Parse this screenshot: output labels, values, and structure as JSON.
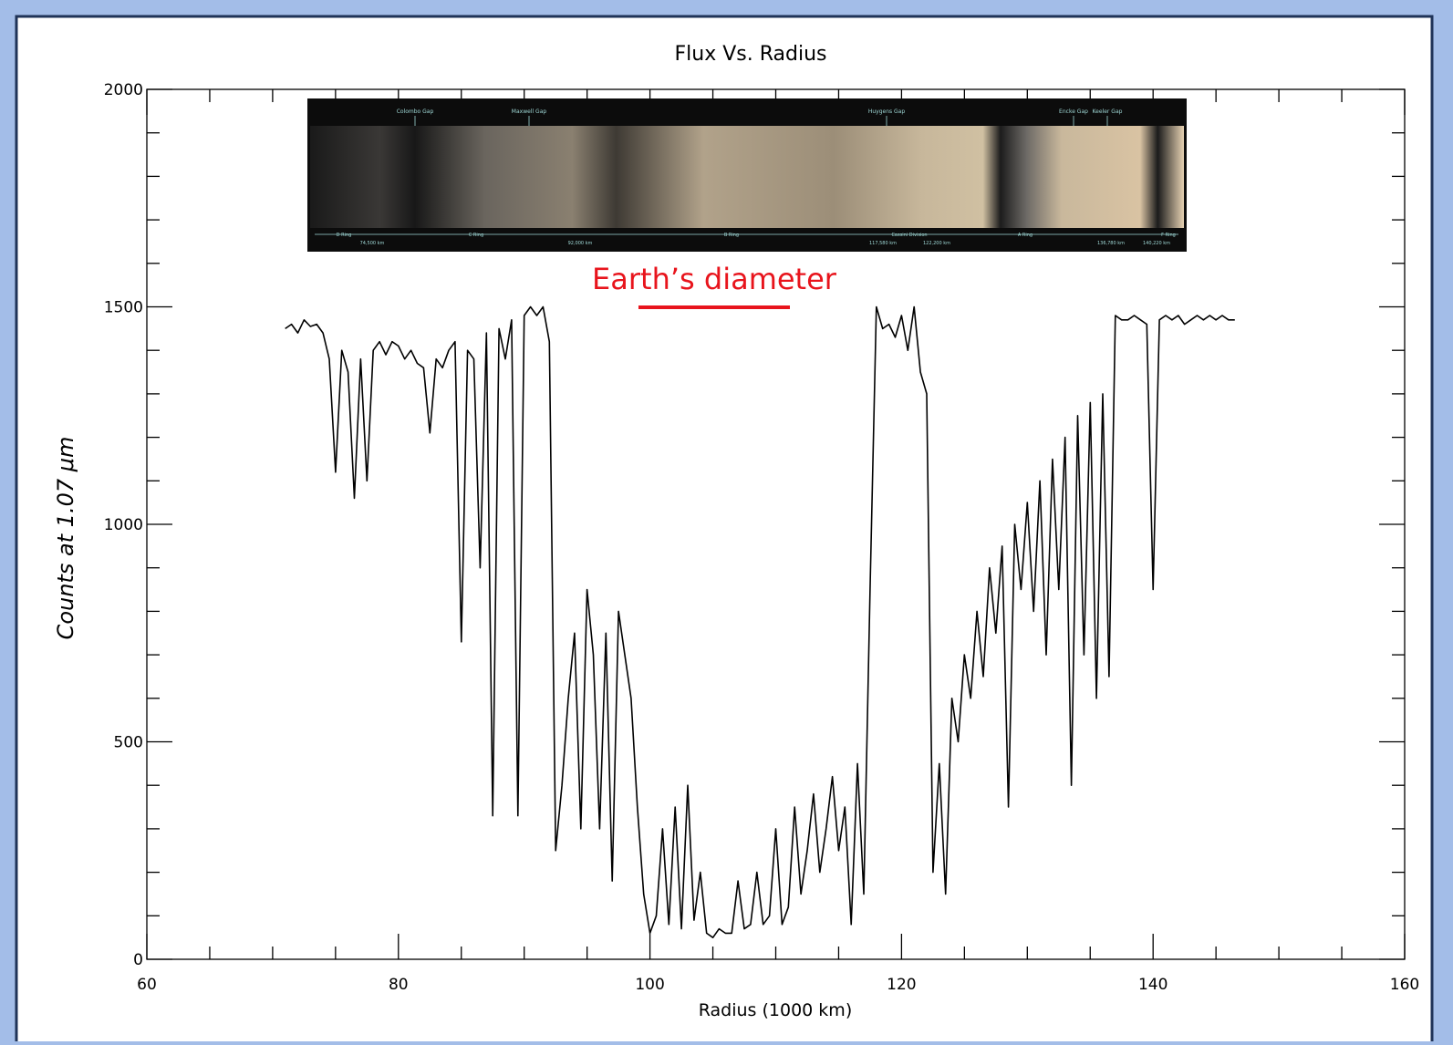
{
  "chart_data": {
    "type": "line",
    "title": "Flux Vs. Radius",
    "x_label": "Radius (1000 km)",
    "y_label": "Counts at 1.07 μm",
    "annotation": "Earth’s diameter",
    "inset_top_labels": [
      "Colombo Gap",
      "Maxwell Gap",
      "Huygens Gap",
      "Encke Gap",
      "Keeler Gap"
    ],
    "inset_bottom_labels": [
      "D Ring",
      "74,500 km",
      "C Ring",
      "92,000 km",
      "B Ring",
      "117,580 km",
      "Cassini Division",
      "122,200 km",
      "A Ring",
      "136,780 km",
      "140,220 km",
      "F Ring"
    ],
    "color": "#000000",
    "x": [
      71,
      71.5,
      72,
      72.5,
      73,
      73.5,
      74,
      74.5,
      75,
      75.5,
      76,
      76.5,
      77,
      77.5,
      78,
      78.5,
      79,
      79.5,
      80,
      80.5,
      81,
      81.5,
      82,
      82.5,
      83,
      83.5,
      84,
      84.5,
      85,
      85.5,
      86,
      86.5,
      87,
      87.5,
      88,
      88.5,
      89,
      89.5,
      90,
      90.5,
      91,
      91.5,
      92,
      92.5,
      93,
      93.5,
      94,
      94.5,
      95,
      95.5,
      96,
      96.5,
      97,
      97.5,
      98,
      98.5,
      99,
      99.5,
      100,
      100.5,
      101,
      101.5,
      102,
      102.5,
      103,
      103.5,
      104,
      104.5,
      105,
      105.5,
      106,
      106.5,
      107,
      107.5,
      108,
      108.5,
      109,
      109.5,
      110,
      110.5,
      111,
      111.5,
      112,
      112.5,
      113,
      113.5,
      114,
      114.5,
      115,
      115.5,
      116,
      116.5,
      117,
      117.5,
      118,
      118.5,
      119,
      119.5,
      120,
      120.5,
      121,
      121.5,
      122,
      122.5,
      123,
      123.5,
      124,
      124.5,
      125,
      125.5,
      126,
      126.5,
      127,
      127.5,
      128,
      128.5,
      129,
      129.5,
      130,
      130.5,
      131,
      131.5,
      132,
      132.5,
      133,
      133.5,
      134,
      134.5,
      135,
      135.5,
      136,
      136.5,
      137,
      137.5,
      138,
      138.5,
      139,
      139.5,
      140,
      140.5,
      141,
      141.5,
      142,
      142.5,
      143,
      143.5,
      144,
      144.5,
      145,
      145.5,
      146,
      146.5
    ],
    "values": [
      1450,
      1460,
      1440,
      1470,
      1455,
      1460,
      1440,
      1380,
      1120,
      1400,
      1350,
      1060,
      1380,
      1100,
      1400,
      1420,
      1390,
      1420,
      1410,
      1380,
      1400,
      1370,
      1360,
      1210,
      1380,
      1360,
      1400,
      1420,
      730,
      1400,
      1380,
      900,
      1440,
      330,
      1450,
      1380,
      1470,
      330,
      1480,
      1500,
      1480,
      1500,
      1420,
      250,
      400,
      600,
      750,
      300,
      850,
      700,
      300,
      750,
      180,
      800,
      700,
      600,
      350,
      150,
      60,
      100,
      300,
      80,
      350,
      70,
      400,
      90,
      200,
      60,
      50,
      70,
      60,
      60,
      180,
      70,
      80,
      200,
      80,
      100,
      300,
      80,
      120,
      350,
      150,
      250,
      380,
      200,
      300,
      420,
      250,
      350,
      80,
      450,
      150,
      850,
      1500,
      1450,
      1460,
      1430,
      1480,
      1400,
      1500,
      1350,
      1300,
      200,
      450,
      150,
      600,
      500,
      700,
      600,
      800,
      650,
      900,
      750,
      950,
      350,
      1000,
      850,
      1050,
      800,
      1100,
      700,
      1150,
      850,
      1200,
      400,
      1250,
      700,
      1280,
      600,
      1300,
      650,
      1480,
      1470,
      1470,
      1480,
      1470,
      1460,
      850,
      1470,
      1480,
      1470,
      1480,
      1460,
      1470,
      1480,
      1470,
      1480,
      1470,
      1480,
      1470,
      1470
    ],
    "xlim": [
      60,
      160
    ],
    "xticks": [
      60,
      80,
      100,
      120,
      140,
      160
    ],
    "x_minor_ticks": [
      65,
      70,
      75,
      85,
      90,
      95,
      105,
      110,
      115,
      125,
      130,
      135,
      145,
      150,
      155
    ],
    "ylim": [
      0,
      2000
    ],
    "yticks": [
      0,
      500,
      1000,
      1500,
      2000
    ],
    "y_minor_ticks": [
      100,
      200,
      300,
      400,
      600,
      700,
      800,
      900,
      1100,
      1200,
      1300,
      1400,
      1600,
      1700,
      1800,
      1900
    ]
  }
}
